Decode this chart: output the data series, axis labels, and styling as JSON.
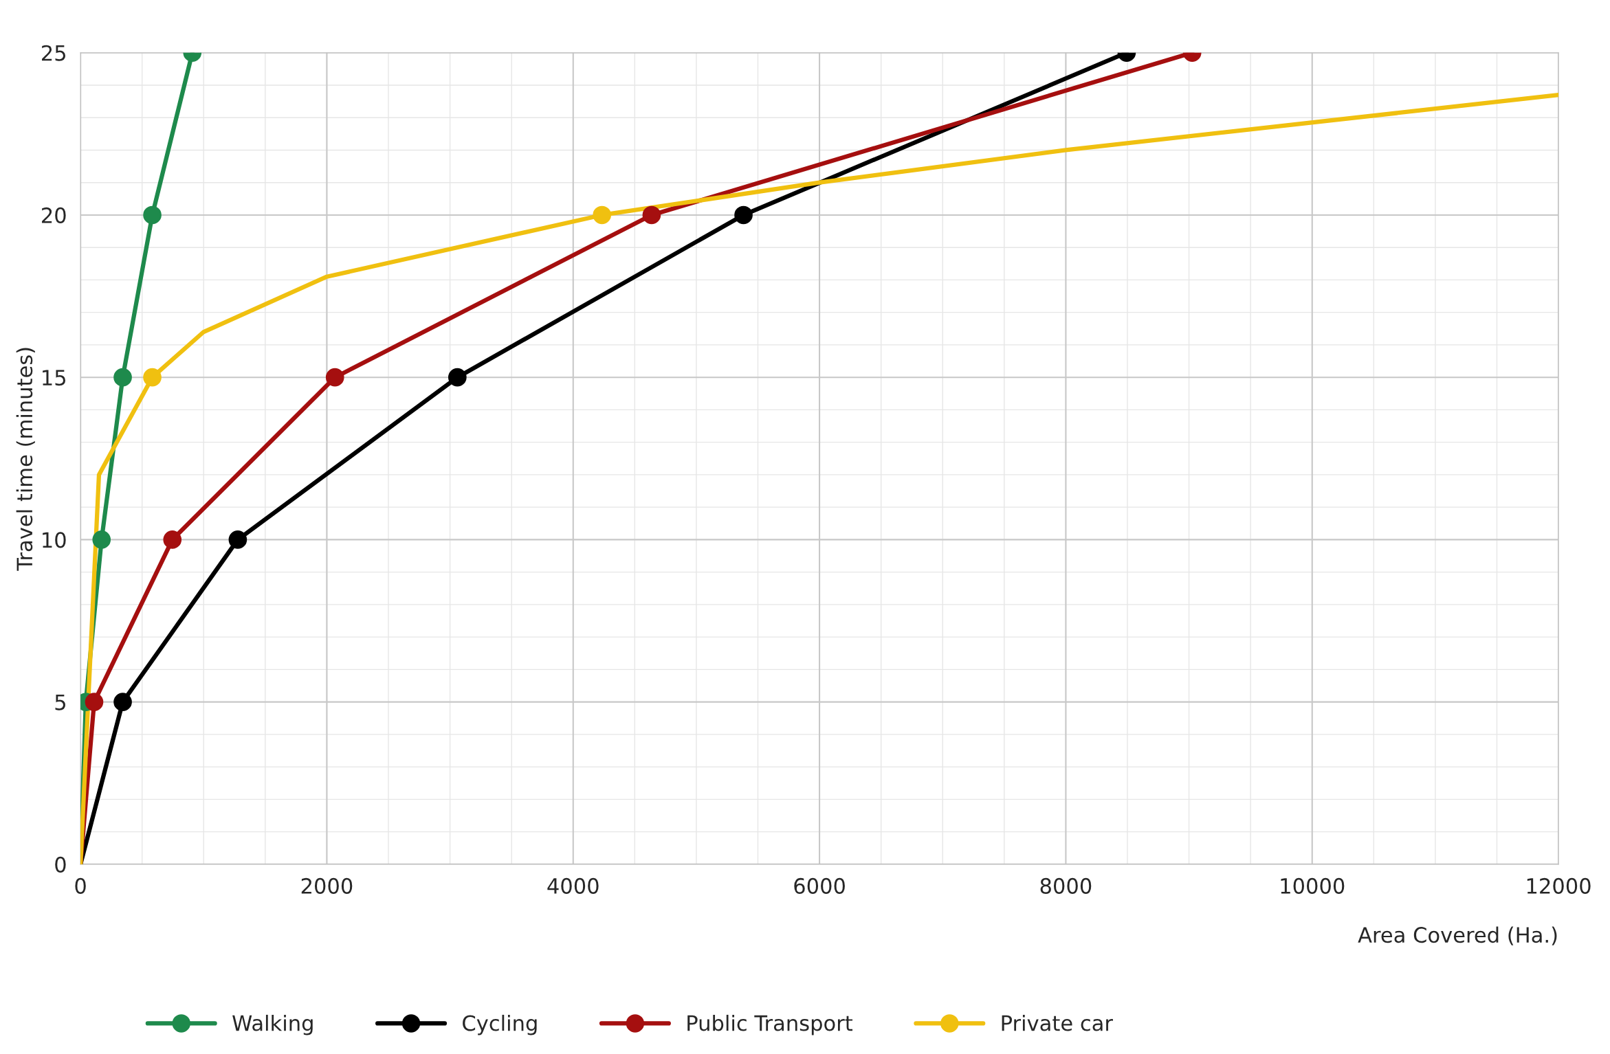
{
  "chart_data": {
    "type": "line",
    "xlabel": "Area Covered (Ha.)",
    "ylabel": "Travel time (minutes)",
    "xlim": [
      0,
      12000
    ],
    "ylim": [
      0,
      25
    ],
    "xticks": [
      0,
      2000,
      4000,
      6000,
      8000,
      10000,
      12000
    ],
    "yticks": [
      0,
      5,
      10,
      15,
      20,
      25
    ],
    "grid": true,
    "legend": "bottom",
    "marker": "circle",
    "line_style": "solid",
    "series": [
      {
        "name": "Walking",
        "color": "#1e8a4c",
        "x": [
          0,
          43,
          171,
          343,
          583,
          908
        ],
        "values": [
          0,
          5,
          10,
          15,
          20,
          25
        ]
      },
      {
        "name": "Cycling",
        "color": "#000000",
        "x": [
          0,
          343,
          1277,
          3060,
          5383,
          8494
        ],
        "values": [
          0,
          5,
          10,
          15,
          20,
          25
        ]
      },
      {
        "name": "Public Transport",
        "color": "#a50f0f",
        "x": [
          0,
          111,
          746,
          2066,
          4637,
          9026
        ],
        "values": [
          0,
          5,
          10,
          15,
          20,
          25
        ]
      },
      {
        "name": "Private car",
        "color": "#f0c010",
        "marker": "none",
        "x": [
          0,
          150,
          583,
          1000,
          2000,
          4234,
          6000,
          8000,
          12000
        ],
        "values": [
          0,
          12,
          15,
          16.4,
          18.1,
          20,
          21,
          22,
          23.7
        ]
      },
      {
        "type": "scatter",
        "color": "#f0c010",
        "x": [
          583,
          4234
        ],
        "values": [
          15,
          20
        ]
      }
    ]
  }
}
